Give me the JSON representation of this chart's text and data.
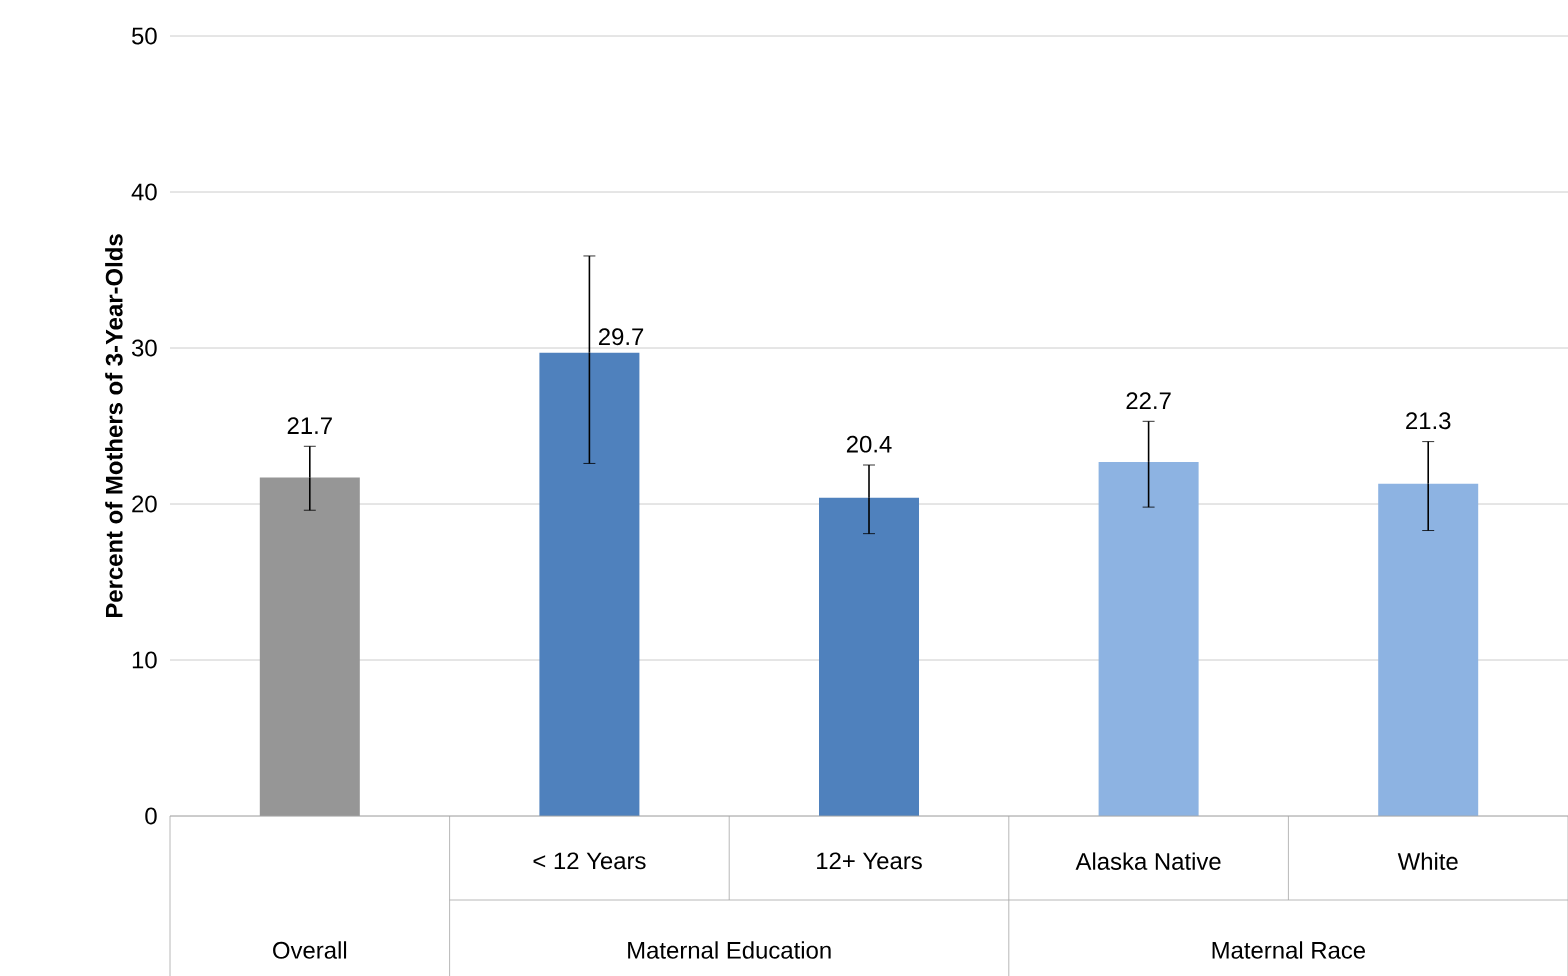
{
  "chart_data": {
    "type": "bar",
    "ylabel": "Percent of Mothers of 3-Year-Olds",
    "categories": [
      null,
      "< 12 Years",
      "12+ Years",
      "Alaska Native",
      "White"
    ],
    "values": [
      21.7,
      29.7,
      20.4,
      22.7,
      21.3
    ],
    "colors": [
      "#969696",
      "#4f81bd",
      "#4f81bd",
      "#8db3e2",
      "#8db3e2"
    ],
    "errors": [
      [
        19.6,
        23.7
      ],
      [
        22.6,
        35.9
      ],
      [
        18.1,
        22.5
      ],
      [
        19.8,
        25.3
      ],
      [
        18.3,
        24.0
      ]
    ],
    "data_labels": true,
    "annotations": [
      "Overall",
      "Maternal Education",
      "Maternal Race"
    ],
    "ylim": [
      0,
      50
    ],
    "yticks": [
      0,
      10,
      20,
      30,
      40,
      50
    ],
    "grid": "y"
  }
}
